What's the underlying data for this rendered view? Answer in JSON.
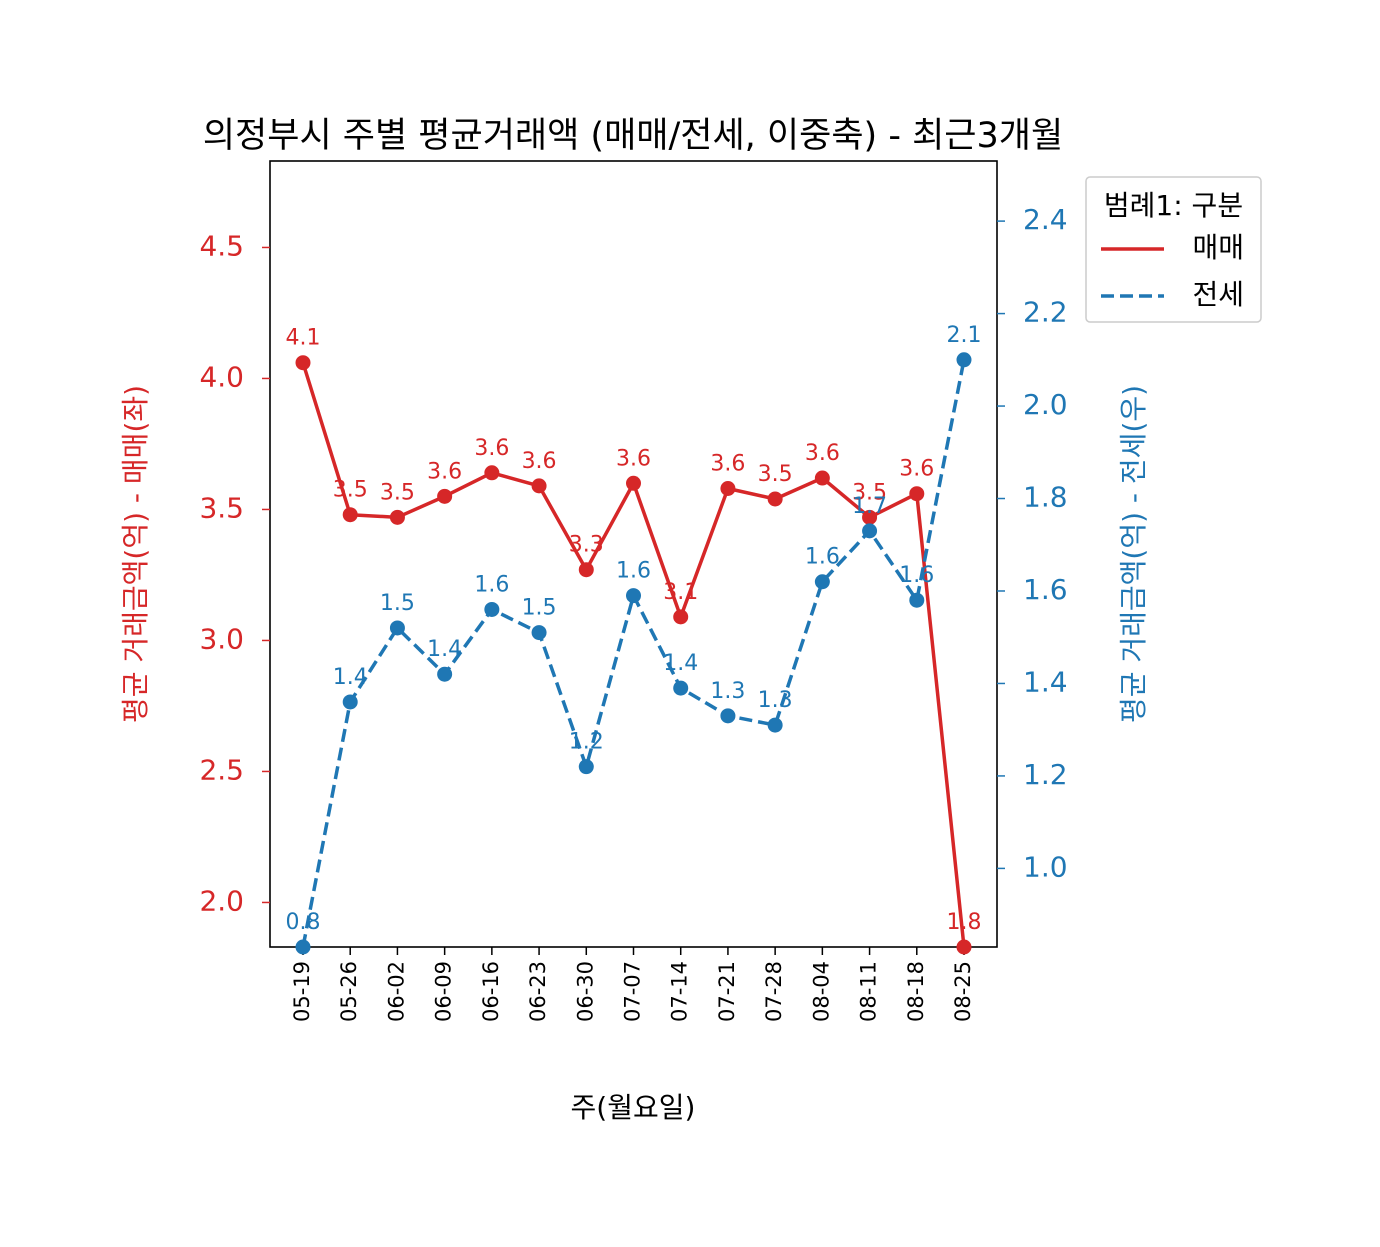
{
  "chart_data": {
    "type": "line",
    "title": "의정부시 주별 평균거래액 (매매/전세, 이중축) - 최근3개월",
    "xlabel": "주(월요일)",
    "ylabel_left": "평균 거래금액(억) - 매매(좌)",
    "ylabel_right": "평균 거래금액(억) - 전세(우)",
    "categories": [
      "05-19",
      "05-26",
      "06-02",
      "06-09",
      "06-16",
      "06-23",
      "06-30",
      "07-07",
      "07-14",
      "07-21",
      "07-28",
      "08-04",
      "08-11",
      "08-18",
      "08-25"
    ],
    "ylim_left": [
      1.83,
      4.83
    ],
    "yticks_left": [
      "2.0",
      "2.5",
      "3.0",
      "3.5",
      "4.0",
      "4.5"
    ],
    "ylim_right": [
      0.83,
      2.53
    ],
    "yticks_right": [
      "1.0",
      "1.2",
      "1.4",
      "1.6",
      "1.8",
      "2.0",
      "2.2",
      "2.4"
    ],
    "grid": false,
    "legend": {
      "title": "범례1: 구분",
      "position": "top-right, outside plot"
    },
    "series": [
      {
        "name": "매매",
        "axis": "left",
        "color": "#d62728",
        "linestyle": "solid",
        "values": [
          4.06,
          3.48,
          3.47,
          3.55,
          3.64,
          3.59,
          3.27,
          3.6,
          3.09,
          3.58,
          3.54,
          3.62,
          3.47,
          3.56,
          1.83
        ],
        "labels": [
          "4.1",
          "3.5",
          "3.5",
          "3.6",
          "3.6",
          "3.6",
          "3.3",
          "3.6",
          "3.1",
          "3.6",
          "3.5",
          "3.6",
          "3.5",
          "3.6",
          "1.8"
        ]
      },
      {
        "name": "전세",
        "axis": "right",
        "color": "#1f77b4",
        "linestyle": "dashed",
        "values": [
          0.83,
          1.36,
          1.52,
          1.42,
          1.56,
          1.51,
          1.22,
          1.59,
          1.39,
          1.33,
          1.31,
          1.62,
          1.73,
          1.58,
          2.1
        ],
        "labels": [
          "0.8",
          "1.4",
          "1.5",
          "1.4",
          "1.6",
          "1.5",
          "1.2",
          "1.6",
          "1.4",
          "1.3",
          "1.3",
          "1.6",
          "1.7",
          "1.6",
          "2.1"
        ]
      }
    ]
  }
}
